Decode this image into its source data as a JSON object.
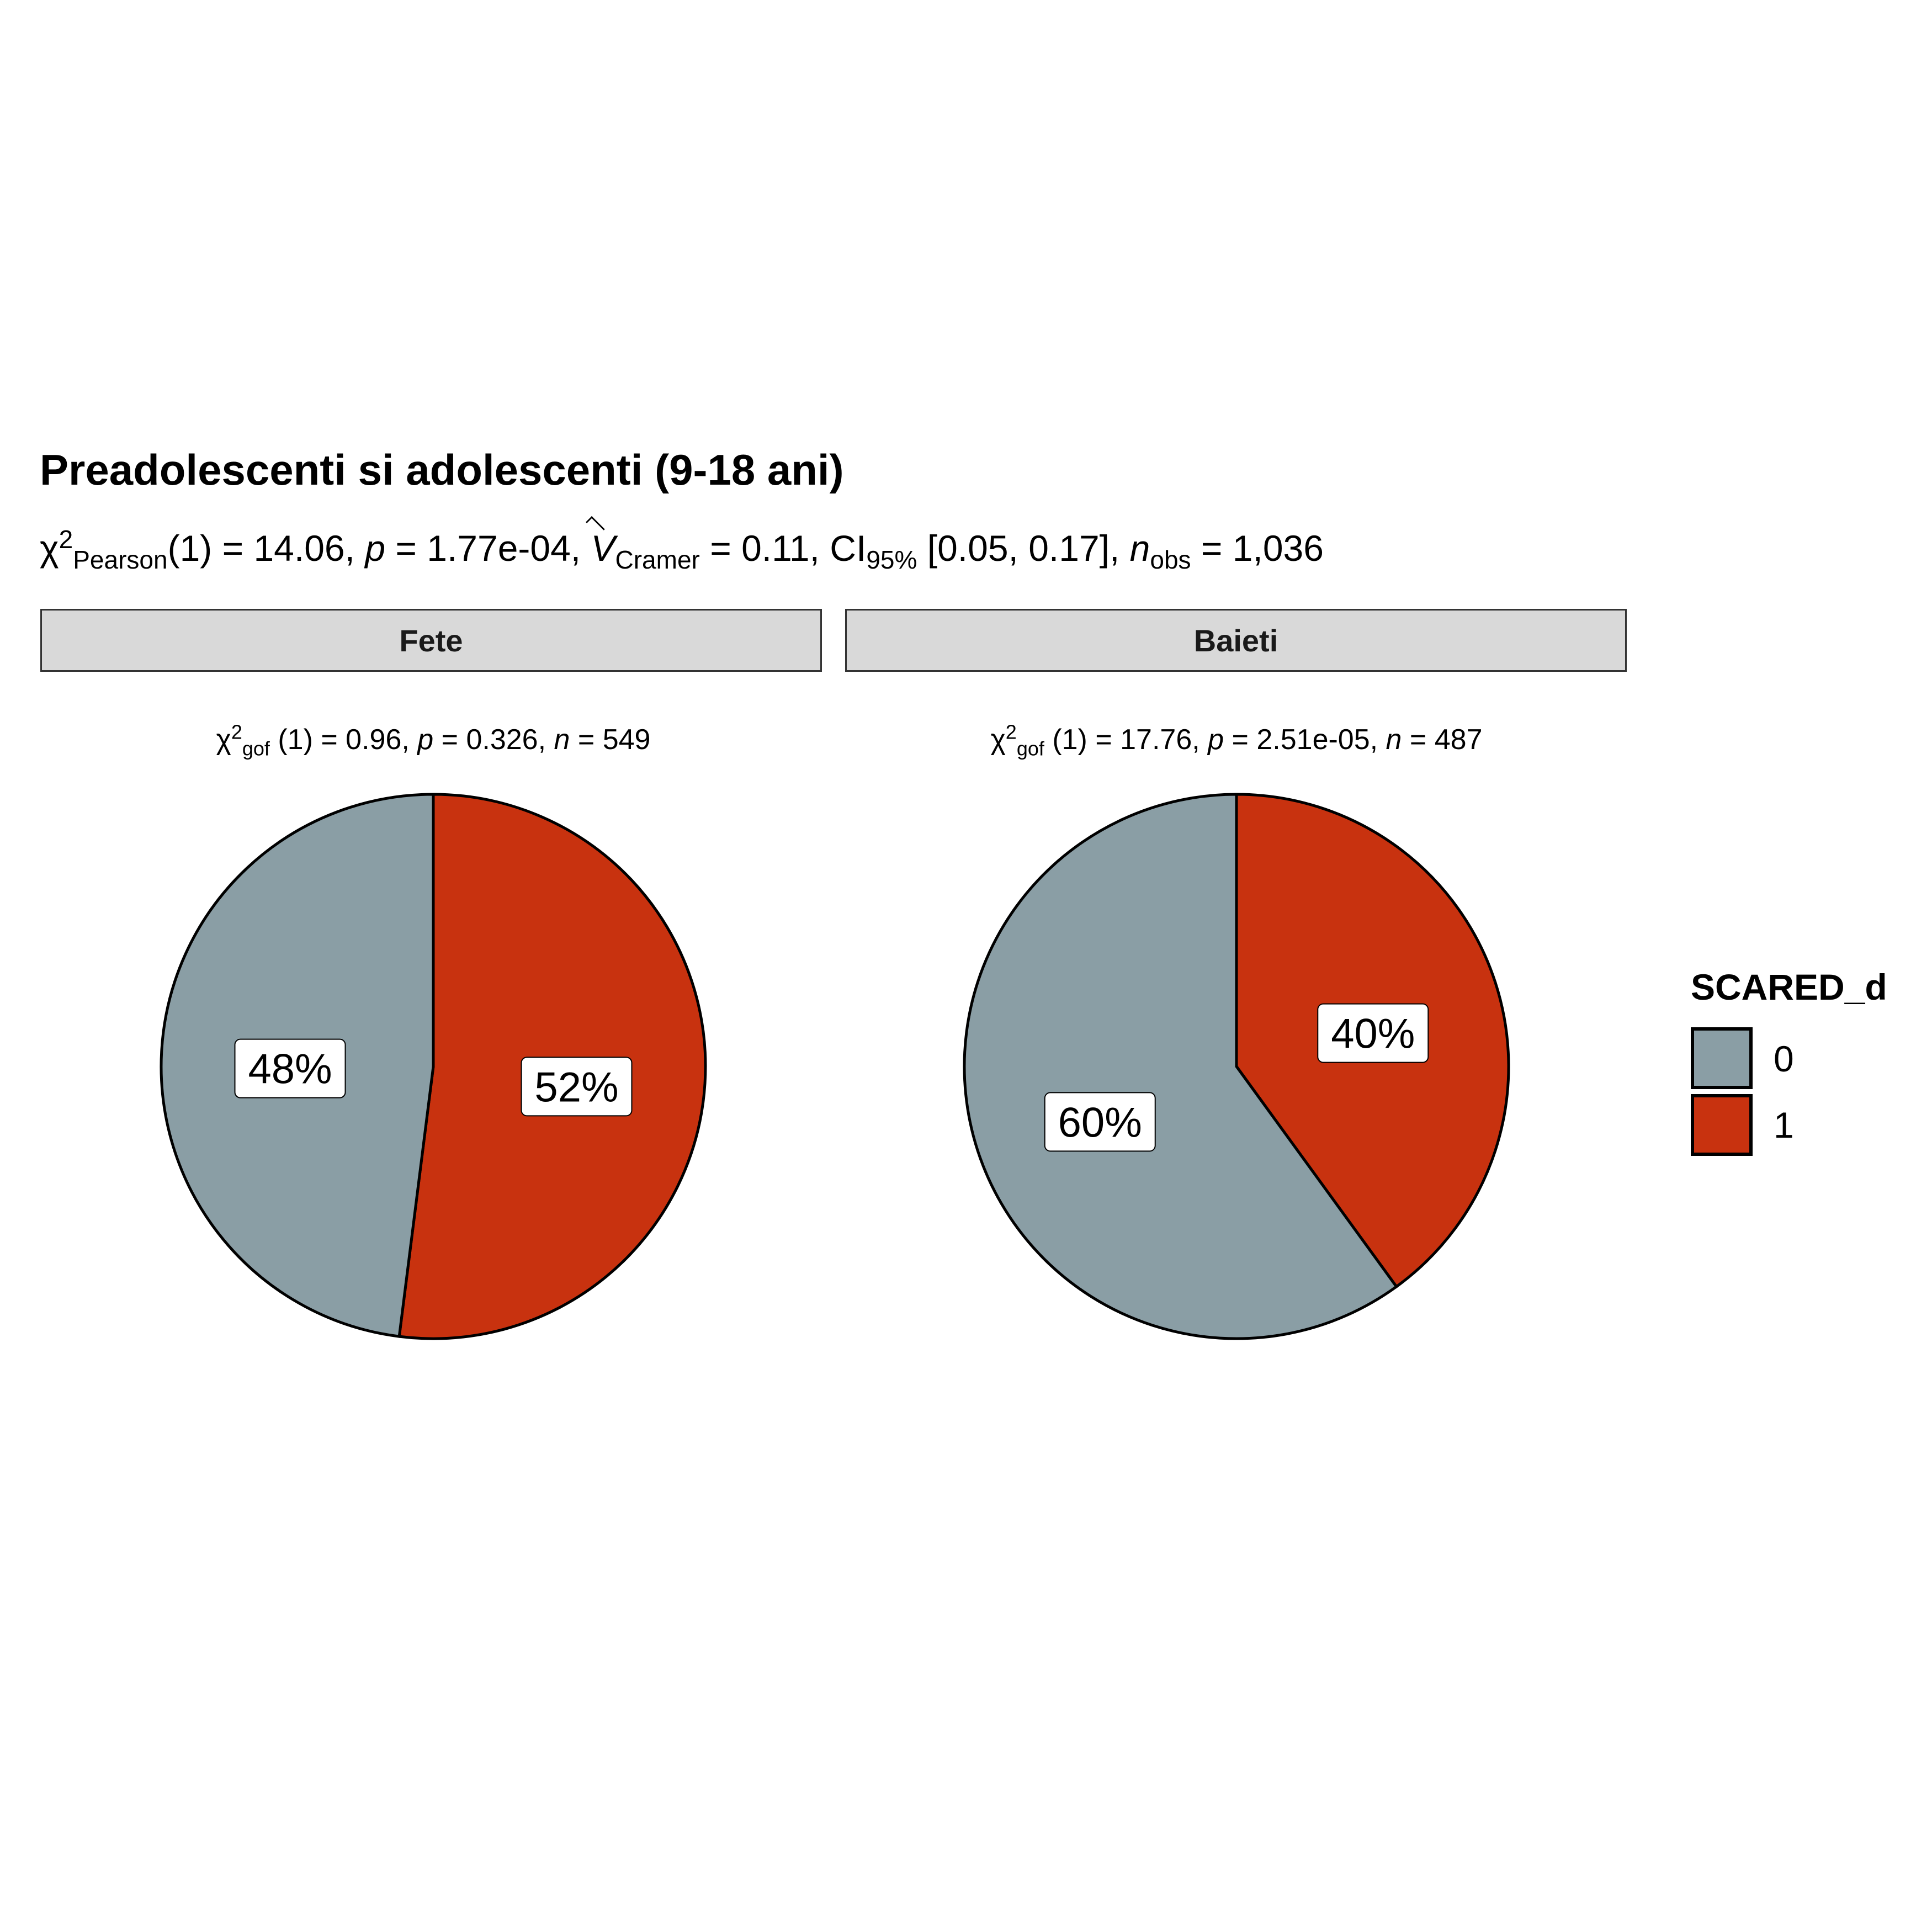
{
  "chart_data": {
    "type": "pie",
    "title": "Preadolescenti si adolescenti (9-18 ani)",
    "subtitle": {
      "stat": "χ",
      "stat_sup": "2",
      "stat_sub": "Pearson",
      "df_part": "(1) = 14.06, ",
      "p_symbol": "p",
      "p_part": " = 1.77e-04, ",
      "v_symbol": "V",
      "v_sub": "Cramer",
      "v_part": " = 0.11, CI",
      "ci_sub": "95%",
      "ci_part": " [0.05, 0.17], ",
      "n_symbol": "n",
      "n_sub": "obs",
      "n_part": " = 1,036"
    },
    "legend": {
      "title": "SCARED_d",
      "position": "right",
      "items": [
        {
          "label": "0",
          "color": "#8a9ea5"
        },
        {
          "label": "1",
          "color": "#c8320f"
        }
      ]
    },
    "facets": [
      {
        "name": "Fete",
        "test": {
          "stat": "χ",
          "sup": "2",
          "sub": "gof",
          "rest": " (1) = 0.96,  ",
          "p_symbol": "p",
          "p_val": " = 0.326,  ",
          "n_symbol": "n",
          "n_val": " = 549"
        },
        "slices": [
          {
            "category": "1",
            "percent": 52,
            "label": "52%",
            "color": "#c8320f"
          },
          {
            "category": "0",
            "percent": 48,
            "label": "48%",
            "color": "#8a9ea5"
          }
        ]
      },
      {
        "name": "Baieti",
        "test": {
          "stat": "χ",
          "sup": "2",
          "sub": "gof",
          "rest": " (1) = 17.76,  ",
          "p_symbol": "p",
          "p_val": " = 2.51e-05,  ",
          "n_symbol": "n",
          "n_val": " = 487"
        },
        "slices": [
          {
            "category": "1",
            "percent": 40,
            "label": "40%",
            "color": "#c8320f"
          },
          {
            "category": "0",
            "percent": 60,
            "label": "60%",
            "color": "#8a9ea5"
          }
        ]
      }
    ]
  }
}
